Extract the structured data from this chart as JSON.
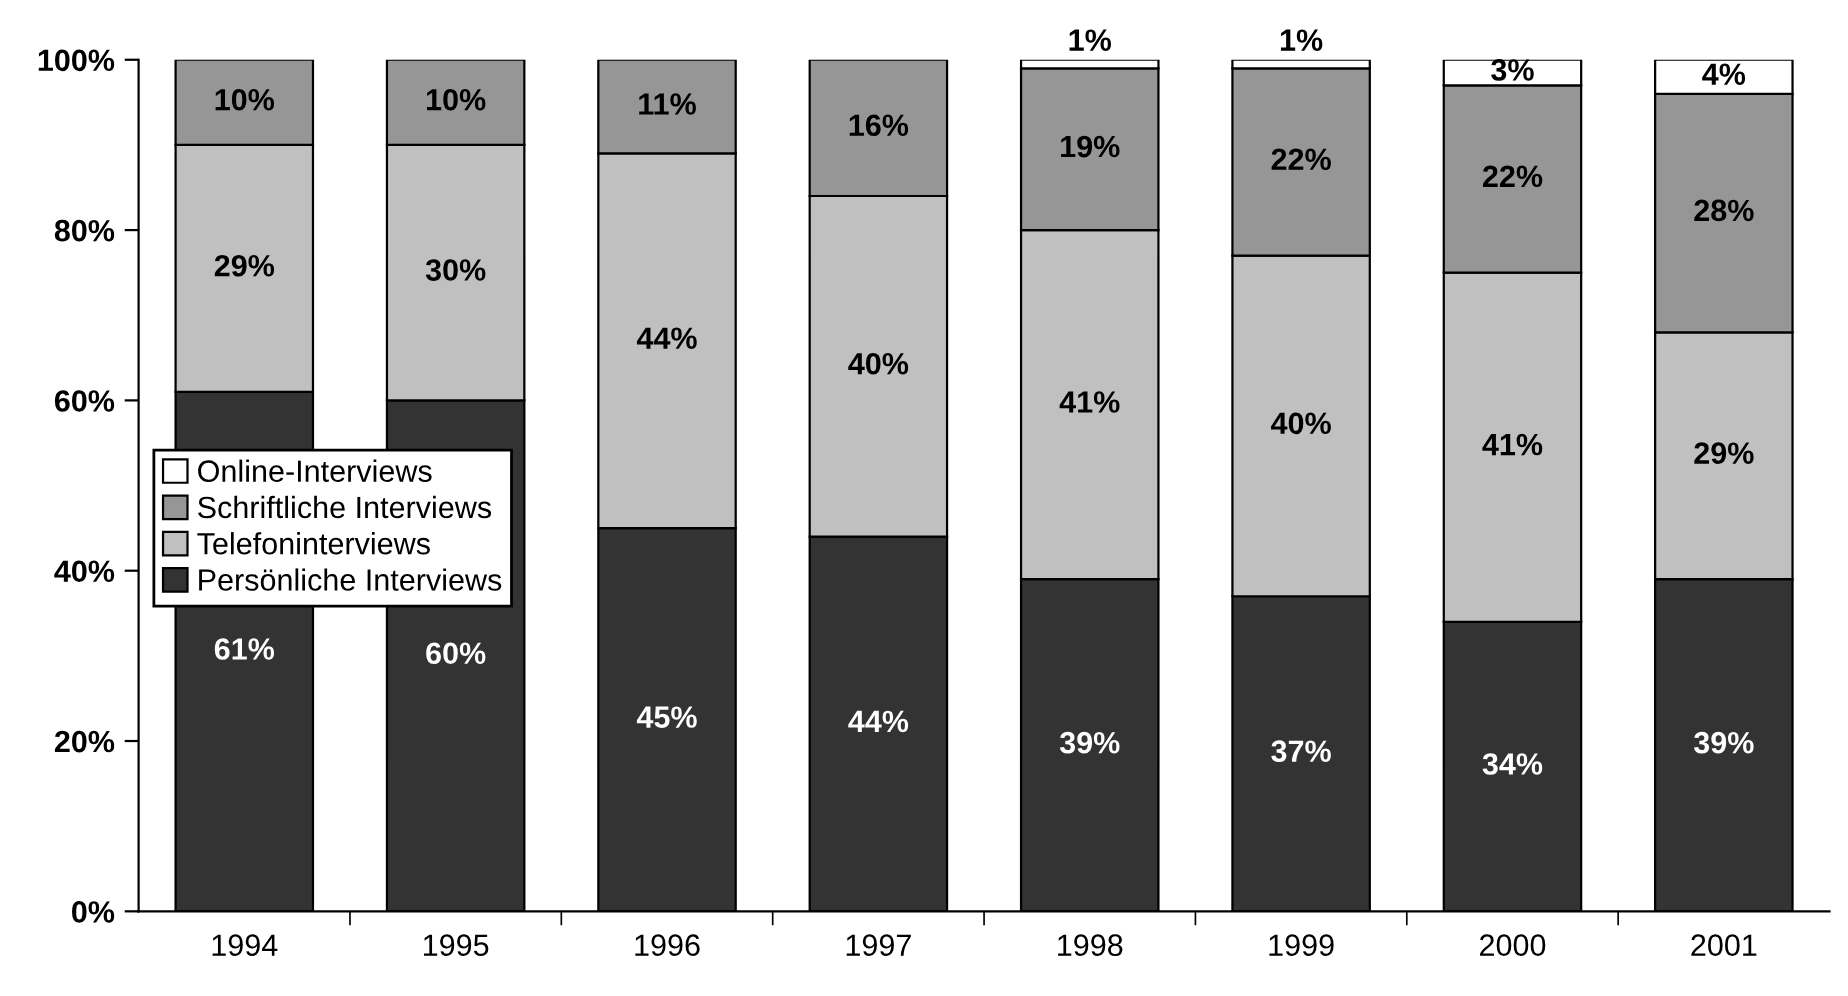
{
  "chart_data": {
    "type": "bar",
    "stacked": true,
    "categories": [
      "1994",
      "1995",
      "1996",
      "1997",
      "1998",
      "1999",
      "2000",
      "2001"
    ],
    "series": [
      {
        "name": "Persönliche Interviews",
        "color": "#333333",
        "values": [
          61,
          60,
          45,
          44,
          39,
          37,
          34,
          39
        ],
        "value_labels": [
          "61%",
          "60%",
          "45%",
          "44%",
          "39%",
          "37%",
          "34%",
          "39%"
        ]
      },
      {
        "name": "Telefoninterviews",
        "color": "#c0c0c0",
        "values": [
          29,
          30,
          44,
          40,
          41,
          40,
          41,
          29
        ],
        "value_labels": [
          "29%",
          "30%",
          "44%",
          "40%",
          "41%",
          "40%",
          "41%",
          "29%"
        ]
      },
      {
        "name": "Schriftliche Interviews",
        "color": "#969696",
        "values": [
          10,
          10,
          11,
          16,
          19,
          22,
          22,
          28
        ],
        "value_labels": [
          "10%",
          "10%",
          "11%",
          "16%",
          "19%",
          "22%",
          "22%",
          "28%"
        ]
      },
      {
        "name": "Online-Interviews",
        "color": "#ffffff",
        "values": [
          null,
          null,
          null,
          null,
          1,
          1,
          3,
          4
        ],
        "value_labels": [
          null,
          null,
          null,
          null,
          "1%",
          "1%",
          "3%",
          "4%"
        ]
      }
    ],
    "ylim": [
      0,
      100
    ],
    "yticks": [
      {
        "value": 0,
        "label": "0%"
      },
      {
        "value": 20,
        "label": "20%"
      },
      {
        "value": 40,
        "label": "40%"
      },
      {
        "value": 60,
        "label": "60%"
      },
      {
        "value": 80,
        "label": "80%"
      },
      {
        "value": 100,
        "label": "100%"
      }
    ],
    "legend": "center left"
  }
}
